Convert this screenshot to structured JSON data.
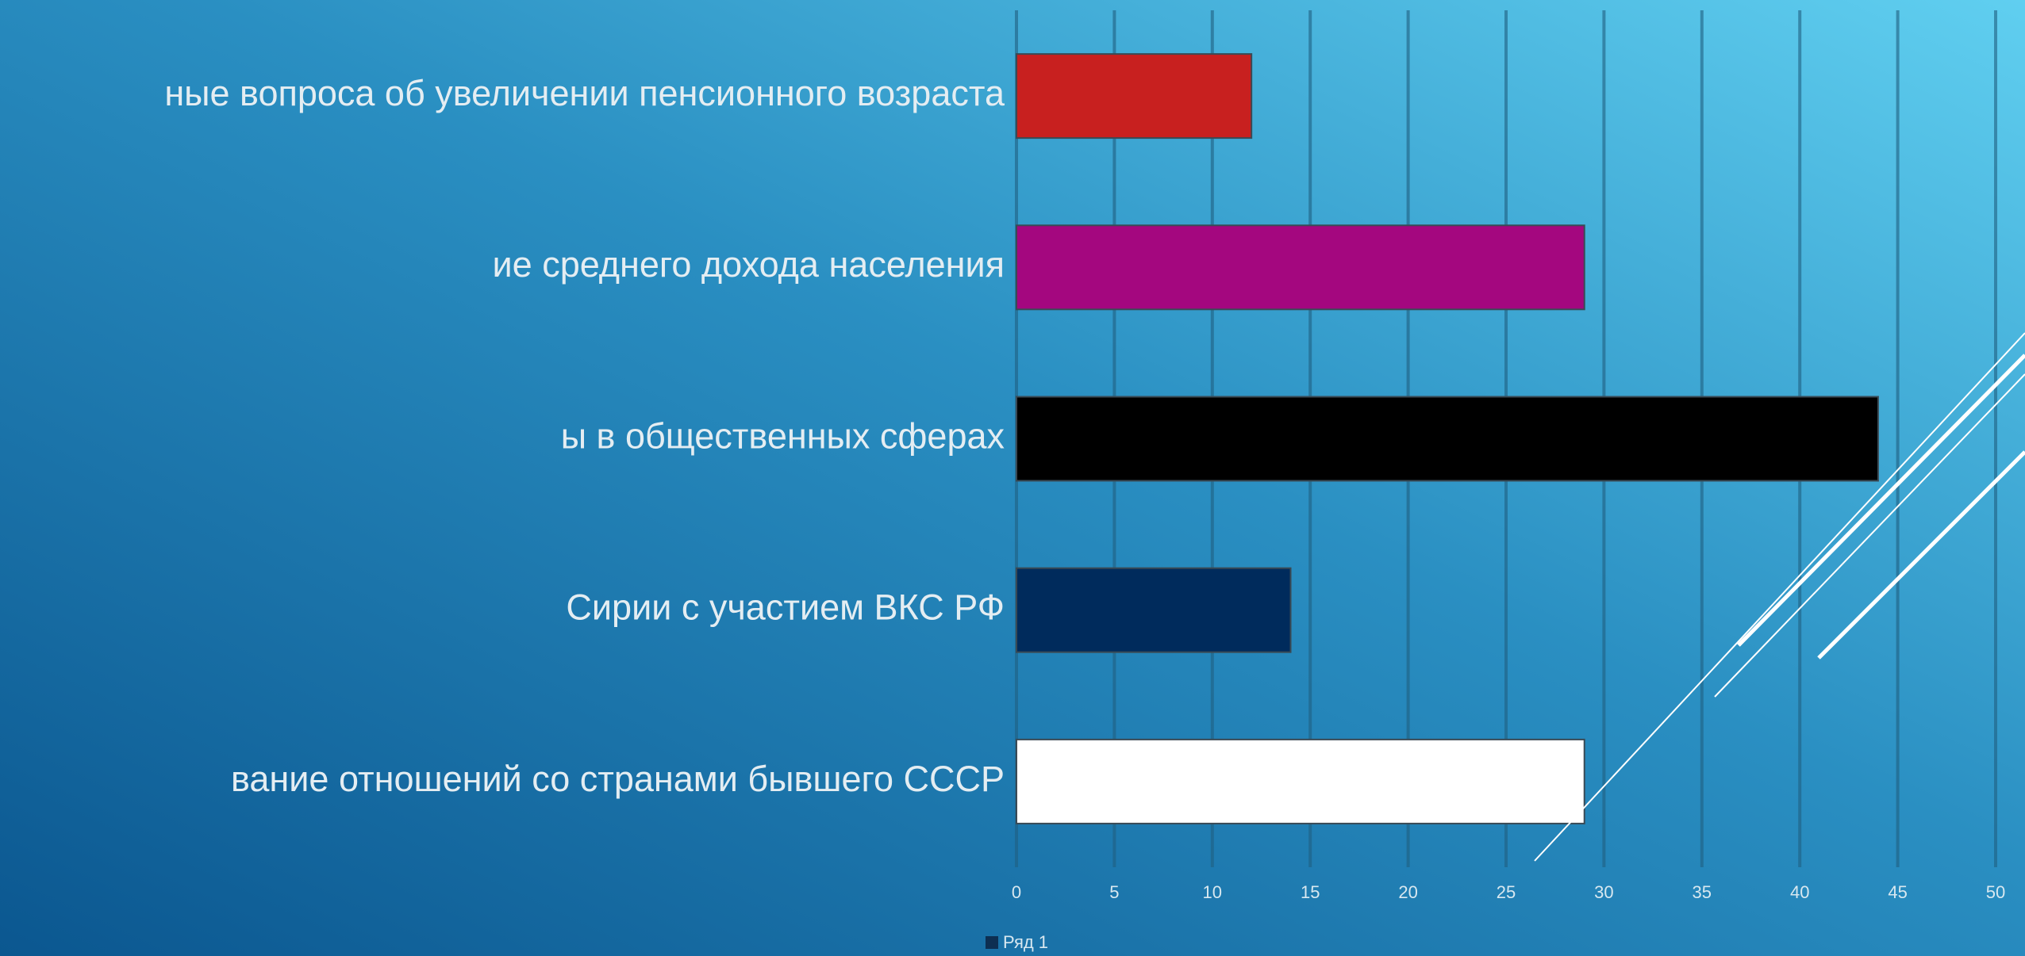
{
  "chart_data": {
    "type": "bar",
    "orientation": "horizontal",
    "categories": [
      "ные вопроса об увеличении пенсионного возраста",
      "ие среднего дохода населения",
      "ы в общественных сферах",
      "Сирии с участием ВКС РФ",
      "вание отношений со странами бывшего СССР"
    ],
    "series": [
      {
        "name": "Ряд 1",
        "color": "#0d2f52",
        "values": [
          12,
          29,
          44,
          14,
          29
        ]
      }
    ],
    "colors": [
      "#c8201f",
      "#a4077f",
      "#000000",
      "#002b5c",
      "#ffffff"
    ],
    "xlim": [
      0,
      50
    ],
    "xticks": [
      0,
      5,
      10,
      15,
      20,
      25,
      30,
      35,
      40,
      45,
      50
    ],
    "grid": true,
    "legend": "bottom"
  }
}
